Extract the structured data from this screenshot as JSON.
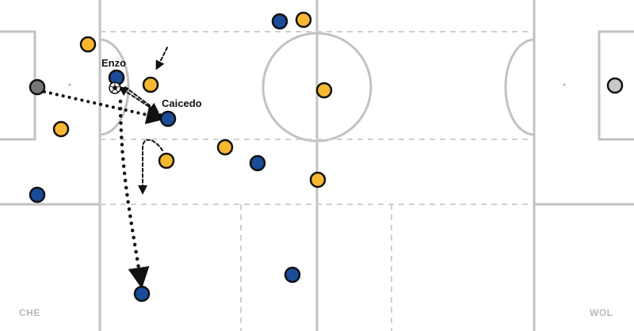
{
  "teams": {
    "left": {
      "label": "CHE",
      "color": "#1a4c99"
    },
    "right": {
      "label": "WOL",
      "color": "#f7b731"
    }
  },
  "player_labels": {
    "enzo": "Enzo",
    "caicedo": "Caicedo"
  },
  "colors": {
    "pitch_line": "#c2c2c2",
    "zone_line": "#cfcfcf",
    "keeper_left": "#777777",
    "keeper_right": "#c8c8c8",
    "arrow": "#111111",
    "player_outline": "#111111",
    "background": "#ffffff"
  },
  "icons": {
    "ball": "soccer-ball-icon",
    "arrowhead": "arrowhead-icon"
  }
}
